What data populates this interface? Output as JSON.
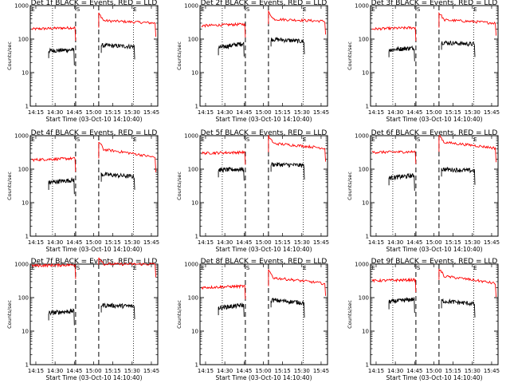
{
  "chart_data": [
    {
      "type": "line",
      "title": "Det 1f BLACK = Events, RED = LLD",
      "xlabel": "Start Time (03-Oct-10 14:10:40)",
      "ylabel": "Counts/sec",
      "x_ticks": [
        "14:15",
        "14:30",
        "14:45",
        "15:00",
        "15:15",
        "15:30",
        "15:45"
      ],
      "y_ticks": [
        "1",
        "10",
        "100",
        "1000"
      ],
      "ylim": [
        1,
        1000
      ],
      "scale": "log",
      "markers": [
        "E",
        "S",
        "E"
      ],
      "series": [
        {
          "color": "#ff0000",
          "levels": [
            [
              200,
              220
            ],
            [
              360,
              300
            ]
          ]
        },
        {
          "color": "#000000",
          "levels": [
            [
              45,
              48
            ],
            [
              65,
              60
            ]
          ]
        }
      ]
    },
    {
      "type": "line",
      "title": "Det 2f BLACK = Events, RED = LLD",
      "xlabel": "Start Time (03-Oct-10 14:10:40)",
      "ylabel": "Counts/sec",
      "x_ticks": [
        "14:15",
        "14:30",
        "14:45",
        "15:00",
        "15:15",
        "15:30",
        "15:45"
      ],
      "y_ticks": [
        "1",
        "10",
        "100",
        "1000"
      ],
      "ylim": [
        1,
        1000
      ],
      "scale": "log",
      "markers": [
        "E",
        "S",
        "E"
      ],
      "series": [
        {
          "color": "#ff0000",
          "levels": [
            [
              250,
              280
            ],
            [
              400,
              340
            ]
          ]
        },
        {
          "color": "#000000",
          "levels": [
            [
              55,
              75
            ],
            [
              100,
              85
            ]
          ]
        }
      ]
    },
    {
      "type": "line",
      "title": "Det 3f BLACK = Events, RED = LLD",
      "xlabel": "Start Time (03-Oct-10 14:10:40)",
      "ylabel": "Counts/sec",
      "x_ticks": [
        "14:15",
        "14:30",
        "14:45",
        "15:00",
        "15:15",
        "15:30",
        "15:45"
      ],
      "y_ticks": [
        "1",
        "10",
        "100",
        "1000"
      ],
      "ylim": [
        1,
        1000
      ],
      "scale": "log",
      "markers": [
        "E",
        "S",
        "E"
      ],
      "series": [
        {
          "color": "#ff0000",
          "levels": [
            [
              200,
              220
            ],
            [
              380,
              300
            ]
          ]
        },
        {
          "color": "#000000",
          "levels": [
            [
              48,
              55
            ],
            [
              80,
              70
            ]
          ]
        }
      ]
    },
    {
      "type": "line",
      "title": "Det 4f BLACK = Events, RED = LLD",
      "xlabel": "Start Time (03-Oct-10 14:10:40)",
      "ylabel": "Counts/sec",
      "x_ticks": [
        "14:15",
        "14:30",
        "14:45",
        "15:00",
        "15:15",
        "15:30",
        "15:45"
      ],
      "y_ticks": [
        "1",
        "10",
        "100",
        "1000"
      ],
      "ylim": [
        1,
        1000
      ],
      "scale": "log",
      "markers": [
        "E",
        "S",
        "E"
      ],
      "series": [
        {
          "color": "#ff0000",
          "levels": [
            [
              190,
              210
            ],
            [
              400,
              220
            ]
          ]
        },
        {
          "color": "#000000",
          "levels": [
            [
              40,
              48
            ],
            [
              70,
              60
            ]
          ]
        }
      ]
    },
    {
      "type": "line",
      "title": "Det 5f BLACK = Events, RED = LLD",
      "xlabel": "Start Time (03-Oct-10 14:10:40)",
      "ylabel": "Counts/sec",
      "x_ticks": [
        "14:15",
        "14:30",
        "14:45",
        "15:00",
        "15:15",
        "15:30",
        "15:45"
      ],
      "y_ticks": [
        "1",
        "10",
        "100",
        "1000"
      ],
      "ylim": [
        1,
        1000
      ],
      "scale": "log",
      "markers": [
        "E",
        "S",
        "E"
      ],
      "series": [
        {
          "color": "#ff0000",
          "levels": [
            [
              300,
              320
            ],
            [
              600,
              420
            ]
          ]
        },
        {
          "color": "#000000",
          "levels": [
            [
              95,
              100
            ],
            [
              140,
              130
            ]
          ]
        }
      ]
    },
    {
      "type": "line",
      "title": "Det 6f BLACK = Events, RED = LLD",
      "xlabel": "Start Time (03-Oct-10 14:10:40)",
      "ylabel": "Counts/sec",
      "x_ticks": [
        "14:15",
        "14:30",
        "14:45",
        "15:00",
        "15:15",
        "15:30",
        "15:45"
      ],
      "y_ticks": [
        "1",
        "10",
        "100",
        "1000"
      ],
      "ylim": [
        1,
        1000
      ],
      "scale": "log",
      "markers": [
        "E",
        "S",
        "E"
      ],
      "series": [
        {
          "color": "#ff0000",
          "levels": [
            [
              320,
              330
            ],
            [
              650,
              420
            ]
          ]
        },
        {
          "color": "#000000",
          "levels": [
            [
              55,
              65
            ],
            [
              100,
              90
            ]
          ]
        }
      ]
    },
    {
      "type": "line",
      "title": "Det 7f BLACK = Events, RED = LLD",
      "xlabel": "Start Time (03-Oct-10 14:10:40)",
      "ylabel": "Counts/sec",
      "x_ticks": [
        "14:15",
        "14:30",
        "14:45",
        "15:00",
        "15:15",
        "15:30",
        "15:45"
      ],
      "y_ticks": [
        "1",
        "10",
        "100",
        "1000"
      ],
      "ylim": [
        1,
        1000
      ],
      "scale": "log",
      "markers": [
        "E",
        "S",
        "E"
      ],
      "series": [
        {
          "color": "#ff0000",
          "levels": [
            [
              900,
              950
            ],
            [
              1000,
              1000
            ]
          ]
        },
        {
          "color": "#000000",
          "levels": [
            [
              35,
              40
            ],
            [
              60,
              55
            ]
          ]
        }
      ]
    },
    {
      "type": "line",
      "title": "Det 8f BLACK = Events, RED = LLD",
      "xlabel": "Start Time (03-Oct-10 14:10:40)",
      "ylabel": "Counts/sec",
      "x_ticks": [
        "14:15",
        "14:30",
        "14:45",
        "15:00",
        "15:15",
        "15:30",
        "15:45"
      ],
      "y_ticks": [
        "1",
        "10",
        "100",
        "1000"
      ],
      "ylim": [
        1,
        1000
      ],
      "scale": "log",
      "markers": [
        "E",
        "S",
        "E"
      ],
      "series": [
        {
          "color": "#ff0000",
          "levels": [
            [
              200,
              220
            ],
            [
              400,
              260
            ]
          ]
        },
        {
          "color": "#000000",
          "levels": [
            [
              50,
              60
            ],
            [
              85,
              70
            ]
          ]
        }
      ]
    },
    {
      "type": "line",
      "title": "Det 9f BLACK = Events, RED = LLD",
      "xlabel": "Start Time (03-Oct-10 14:10:40)",
      "ylabel": "Counts/sec",
      "x_ticks": [
        "14:15",
        "14:30",
        "14:45",
        "15:00",
        "15:15",
        "15:30",
        "15:45"
      ],
      "y_ticks": [
        "1",
        "10",
        "100",
        "1000"
      ],
      "ylim": [
        1,
        1000
      ],
      "scale": "log",
      "markers": [
        "E",
        "S",
        "E"
      ],
      "series": [
        {
          "color": "#ff0000",
          "levels": [
            [
              320,
              340
            ],
            [
              450,
              260
            ]
          ]
        },
        {
          "color": "#000000",
          "levels": [
            [
              75,
              90
            ],
            [
              80,
              65
            ]
          ]
        }
      ]
    }
  ]
}
